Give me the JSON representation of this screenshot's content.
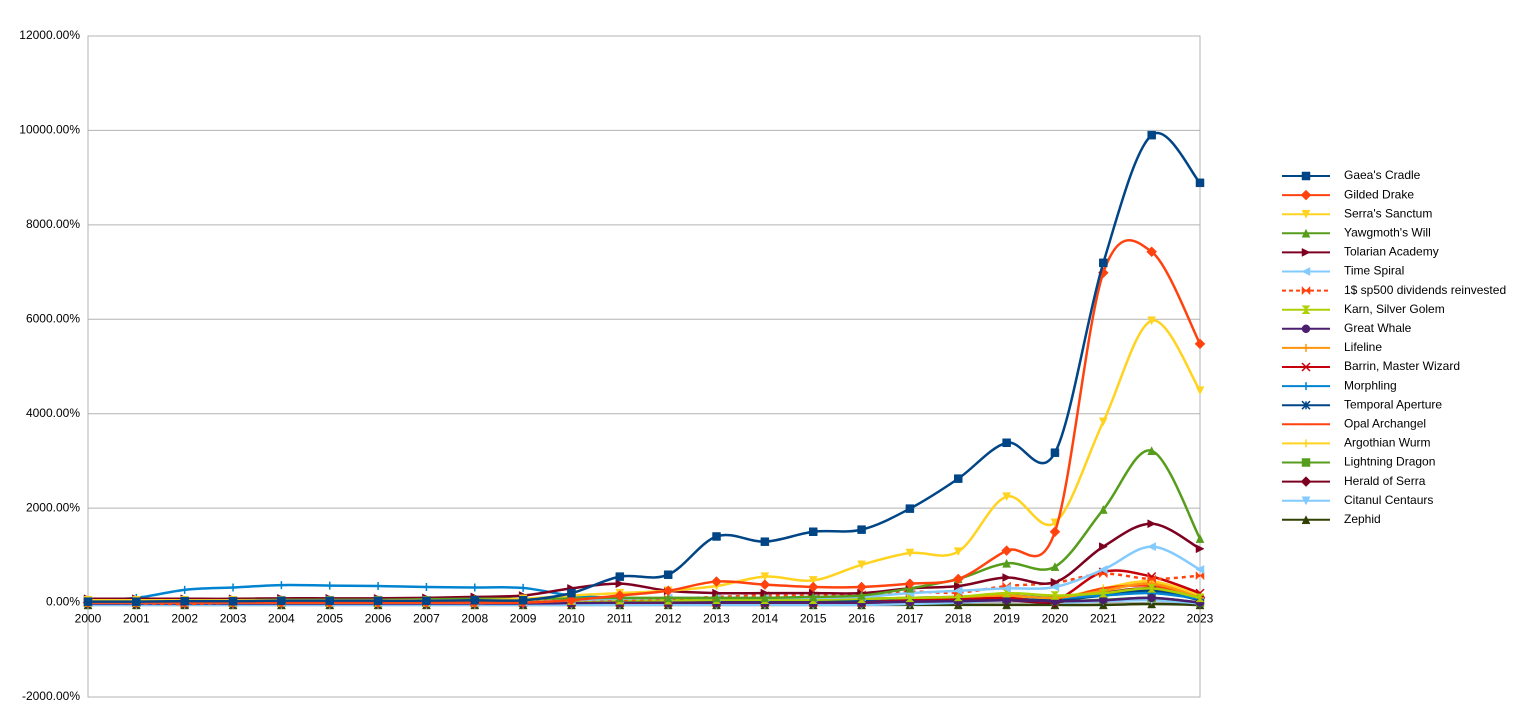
{
  "chart_data": {
    "type": "line",
    "grid": true,
    "legend": "right",
    "smooth": true,
    "x": [
      2000,
      2001,
      2002,
      2003,
      2004,
      2005,
      2006,
      2007,
      2008,
      2009,
      2010,
      2011,
      2012,
      2013,
      2014,
      2015,
      2016,
      2017,
      2018,
      2019,
      2020,
      2021,
      2022,
      2023
    ],
    "xlim": [
      2000,
      2023
    ],
    "ylim": [
      -2000,
      12000
    ],
    "yticks": [
      {
        "value": -2000,
        "label": "-2000.00%"
      },
      {
        "value": 0,
        "label": "0.00%"
      },
      {
        "value": 2000,
        "label": "2000.00%"
      },
      {
        "value": 4000,
        "label": "4000.00%"
      },
      {
        "value": 6000,
        "label": "6000.00%"
      },
      {
        "value": 8000,
        "label": "8000.00%"
      },
      {
        "value": 10000,
        "label": "10000.00%"
      },
      {
        "value": 12000,
        "label": "12000.00%"
      }
    ],
    "series": [
      {
        "name": "Gaea's Cradle",
        "color": "#004586",
        "marker": "square",
        "values": [
          20,
          20,
          30,
          30,
          40,
          40,
          40,
          40,
          50,
          50,
          200,
          550,
          590,
          1400,
          1290,
          1500,
          1545,
          1990,
          2625,
          3385,
          3175,
          7195,
          9900,
          8890
        ]
      },
      {
        "name": "Gilded Drake",
        "color": "#ff420e",
        "marker": "diamond",
        "values": [
          0,
          0,
          0,
          0,
          0,
          0,
          0,
          0,
          0,
          0,
          50,
          150,
          250,
          445,
          380,
          330,
          330,
          400,
          500,
          1100,
          1500,
          6985,
          7430,
          5480
        ]
      },
      {
        "name": "Serra's Sanctum",
        "color": "#ffd320",
        "marker": "triangle-down",
        "values": [
          50,
          50,
          50,
          50,
          50,
          50,
          50,
          50,
          50,
          80,
          150,
          200,
          250,
          350,
          550,
          470,
          800,
          1050,
          1080,
          2245,
          1690,
          3830,
          5970,
          4490
        ]
      },
      {
        "name": "Yawgmoth's Will",
        "color": "#579d1c",
        "marker": "triangle-up",
        "values": [
          50,
          50,
          50,
          50,
          60,
          60,
          60,
          70,
          80,
          80,
          90,
          100,
          100,
          100,
          100,
          120,
          150,
          300,
          500,
          830,
          760,
          1970,
          3215,
          1355
        ]
      },
      {
        "name": "Tolarian Academy",
        "color": "#7e0021",
        "marker": "triangle-right",
        "values": [
          80,
          80,
          80,
          80,
          90,
          90,
          90,
          100,
          120,
          150,
          300,
          400,
          250,
          200,
          200,
          200,
          200,
          300,
          350,
          530,
          430,
          1185,
          1670,
          1140
        ]
      },
      {
        "name": "Time Spiral",
        "color": "#83caff",
        "marker": "triangle-left",
        "values": [
          0,
          0,
          0,
          0,
          0,
          0,
          0,
          0,
          0,
          0,
          50,
          80,
          100,
          100,
          100,
          100,
          120,
          200,
          250,
          300,
          330,
          700,
          1185,
          700
        ]
      },
      {
        "name": "1$ sp500 dividends reinvested",
        "color": "#ff420e",
        "marker": "bowtie",
        "dash": true,
        "values": [
          0,
          -10,
          -30,
          0,
          10,
          20,
          40,
          50,
          -10,
          30,
          50,
          60,
          80,
          120,
          150,
          150,
          170,
          230,
          210,
          350,
          420,
          610,
          500,
          570
        ]
      },
      {
        "name": "Karn, Silver Golem",
        "color": "#aecf00",
        "marker": "hourglass",
        "values": [
          0,
          0,
          0,
          0,
          0,
          0,
          0,
          0,
          0,
          20,
          40,
          50,
          50,
          60,
          60,
          60,
          80,
          100,
          120,
          200,
          150,
          200,
          300,
          100
        ]
      },
      {
        "name": "Great Whale",
        "color": "#4b1f6f",
        "marker": "circle",
        "values": [
          -20,
          -20,
          -20,
          -20,
          -20,
          -20,
          -20,
          -20,
          -20,
          -20,
          -10,
          0,
          0,
          0,
          0,
          0,
          0,
          20,
          30,
          50,
          30,
          50,
          100,
          0
        ]
      },
      {
        "name": "Lifeline",
        "color": "#ff950e",
        "marker": "plus",
        "values": [
          0,
          0,
          0,
          0,
          0,
          0,
          0,
          0,
          0,
          0,
          30,
          50,
          50,
          60,
          80,
          80,
          80,
          100,
          120,
          150,
          100,
          250,
          400,
          100
        ]
      },
      {
        "name": "Barrin, Master Wizard",
        "color": "#c5000b",
        "marker": "x",
        "values": [
          0,
          0,
          0,
          0,
          0,
          0,
          0,
          0,
          0,
          0,
          0,
          0,
          0,
          0,
          0,
          0,
          0,
          50,
          80,
          100,
          50,
          650,
          550,
          200
        ]
      },
      {
        "name": "Morphling",
        "color": "#0084d1",
        "marker": "plus",
        "values": [
          50,
          100,
          270,
          320,
          370,
          360,
          350,
          330,
          320,
          310,
          150,
          100,
          80,
          80,
          80,
          80,
          80,
          100,
          120,
          150,
          100,
          150,
          200,
          80
        ]
      },
      {
        "name": "Temporal Aperture",
        "color": "#004586",
        "marker": "asterisk",
        "values": [
          0,
          0,
          0,
          0,
          0,
          0,
          0,
          0,
          0,
          0,
          20,
          30,
          30,
          30,
          30,
          30,
          30,
          50,
          60,
          80,
          50,
          150,
          250,
          50
        ]
      },
      {
        "name": "Opal Archangel",
        "color": "#ff420e",
        "marker": "dash",
        "values": [
          0,
          0,
          0,
          0,
          0,
          0,
          0,
          0,
          0,
          0,
          0,
          0,
          0,
          0,
          0,
          0,
          0,
          50,
          80,
          100,
          50,
          300,
          350,
          100
        ]
      },
      {
        "name": "Argothian Wurm",
        "color": "#ffd320",
        "marker": "plus",
        "values": [
          0,
          0,
          0,
          0,
          0,
          0,
          0,
          0,
          0,
          0,
          20,
          30,
          30,
          40,
          40,
          40,
          50,
          60,
          80,
          150,
          100,
          300,
          450,
          150
        ]
      },
      {
        "name": "Lightning Dragon",
        "color": "#579d1c",
        "marker": "square",
        "values": [
          0,
          0,
          0,
          0,
          0,
          0,
          0,
          0,
          0,
          0,
          10,
          20,
          20,
          20,
          20,
          20,
          20,
          30,
          40,
          60,
          30,
          60,
          100,
          0
        ]
      },
      {
        "name": "Herald of Serra",
        "color": "#7e0021",
        "marker": "diamond",
        "values": [
          0,
          0,
          0,
          0,
          0,
          0,
          0,
          0,
          0,
          0,
          0,
          0,
          0,
          0,
          0,
          0,
          0,
          20,
          30,
          50,
          0,
          200,
          300,
          100
        ]
      },
      {
        "name": "Citanul Centaurs",
        "color": "#83caff",
        "marker": "triangle-down",
        "values": [
          -50,
          -50,
          -50,
          -50,
          -50,
          -50,
          -50,
          -50,
          -50,
          -50,
          -50,
          -50,
          -50,
          -50,
          -50,
          -50,
          -50,
          -30,
          0,
          50,
          0,
          30,
          50,
          -20
        ]
      },
      {
        "name": "Zephid",
        "color": "#314004",
        "marker": "triangle-up",
        "values": [
          -50,
          -50,
          -50,
          -50,
          -50,
          -50,
          -50,
          -50,
          -50,
          -50,
          -50,
          -50,
          -50,
          -50,
          -50,
          -50,
          -50,
          -50,
          -50,
          -50,
          -50,
          -50,
          -30,
          -50
        ]
      }
    ]
  }
}
